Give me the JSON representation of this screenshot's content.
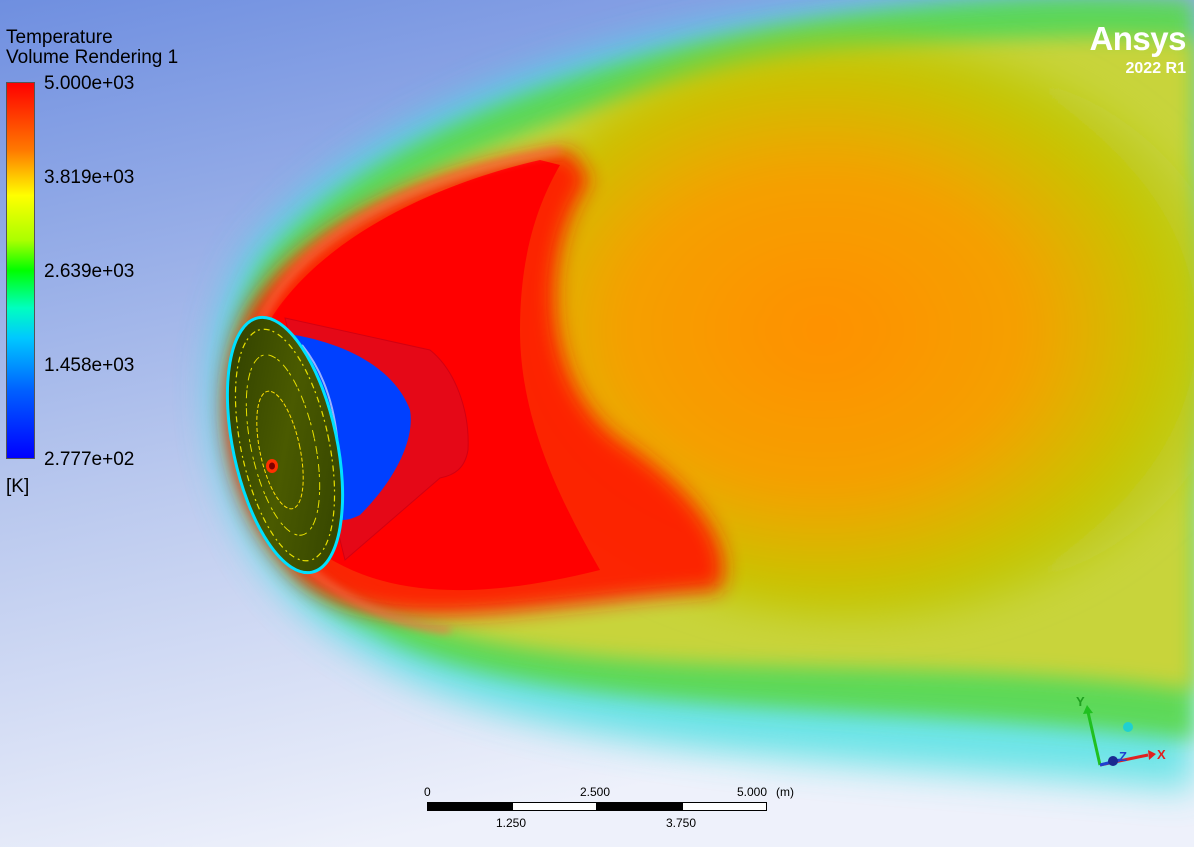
{
  "app": {
    "brand": "Ansys",
    "version": "2022 R1"
  },
  "legend": {
    "variable": "Temperature",
    "subtitle": "Volume Rendering 1",
    "ticks": [
      "5.000e+03",
      "3.819e+03",
      "2.639e+03",
      "1.458e+03",
      "2.777e+02"
    ],
    "unit": "[K]"
  },
  "scale_bar": {
    "top_labels": [
      "0",
      "2.500",
      "5.000"
    ],
    "bottom_labels": [
      "1.250",
      "3.750"
    ],
    "unit": "(m)"
  },
  "axis_triad": {
    "x": "X",
    "y": "Y",
    "z": "Z"
  },
  "colors": {
    "cold": "#0000ff",
    "hot": "#ff0000",
    "mid": "#00ff00",
    "background": "#dfe6f5"
  }
}
